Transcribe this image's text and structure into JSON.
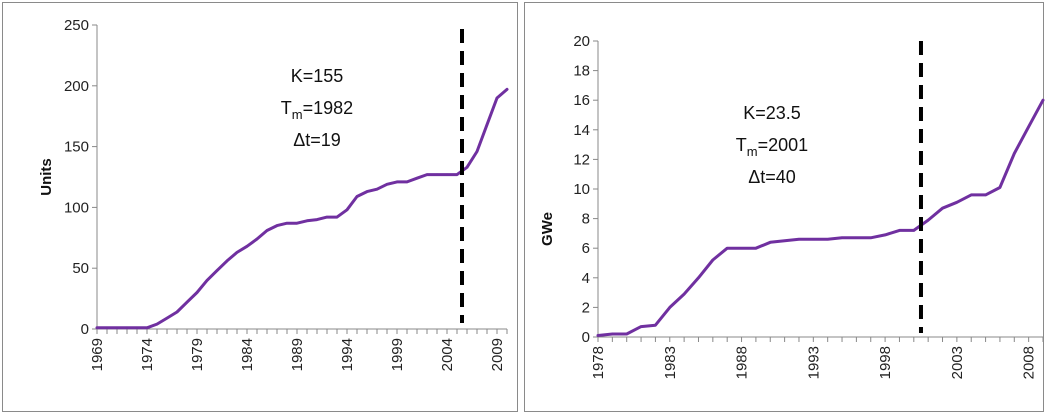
{
  "chart_data": [
    {
      "type": "line",
      "title": "",
      "xlabel": "",
      "ylabel": "Units",
      "ylim": [
        0,
        250
      ],
      "xlim": [
        1969,
        2010
      ],
      "yticks": [
        0,
        50,
        100,
        150,
        200,
        250
      ],
      "xticks": [
        "1969",
        "1974",
        "1979",
        "1984",
        "1989",
        "1994",
        "1999",
        "2004",
        "2009"
      ],
      "grid": false,
      "line_color": "#7030a0",
      "x": [
        1969,
        1970,
        1971,
        1972,
        1973,
        1974,
        1975,
        1976,
        1977,
        1978,
        1979,
        1980,
        1981,
        1982,
        1983,
        1984,
        1985,
        1986,
        1987,
        1988,
        1989,
        1990,
        1991,
        1992,
        1993,
        1994,
        1995,
        1996,
        1997,
        1998,
        1999,
        2000,
        2001,
        2002,
        2003,
        2004,
        2005,
        2006,
        2007,
        2008,
        2009,
        2010
      ],
      "values": [
        1,
        1,
        1,
        1,
        1,
        1,
        4,
        9,
        14,
        22,
        30,
        40,
        48,
        56,
        63,
        68,
        74,
        81,
        85,
        87,
        87,
        89,
        90,
        92,
        92,
        98,
        109,
        113,
        115,
        119,
        121,
        121,
        124,
        127,
        127,
        127,
        127,
        133,
        146,
        168,
        190,
        197
      ],
      "vline": {
        "x": 2005.5,
        "style": "dashed",
        "color": "#000000"
      },
      "annotation": {
        "k": "K=155",
        "t_prefix": "T",
        "t_sub": "m",
        "t_value": "=1982",
        "dt": "Δt=19"
      }
    },
    {
      "type": "line",
      "title": "",
      "xlabel": "",
      "ylabel": "GWe",
      "ylim": [
        0,
        20
      ],
      "xlim": [
        1978,
        2009
      ],
      "yticks": [
        0,
        2,
        4,
        6,
        8,
        10,
        12,
        14,
        16,
        18,
        20
      ],
      "xticks": [
        "1978",
        "1983",
        "1988",
        "1993",
        "1998",
        "2003",
        "2008"
      ],
      "grid": false,
      "line_color": "#7030a0",
      "x": [
        1978,
        1979,
        1980,
        1981,
        1982,
        1983,
        1984,
        1985,
        1986,
        1987,
        1988,
        1989,
        1990,
        1991,
        1992,
        1993,
        1994,
        1995,
        1996,
        1997,
        1998,
        1999,
        2000,
        2001,
        2002,
        2003,
        2004,
        2005,
        2006,
        2007,
        2008,
        2009
      ],
      "values": [
        0.1,
        0.2,
        0.2,
        0.7,
        0.8,
        2.0,
        2.9,
        4.0,
        5.2,
        6.0,
        6.0,
        6.0,
        6.4,
        6.5,
        6.6,
        6.6,
        6.6,
        6.7,
        6.7,
        6.7,
        6.9,
        7.2,
        7.2,
        7.9,
        8.7,
        9.1,
        9.6,
        9.6,
        10.1,
        12.4,
        14.2,
        16.0
      ],
      "vline": {
        "x": 2000.5,
        "style": "dashed",
        "color": "#000000"
      },
      "annotation": {
        "k": "K=23.5",
        "t_prefix": "T",
        "t_sub": "m",
        "t_value": "=2001",
        "dt": "Δt=40"
      }
    }
  ]
}
